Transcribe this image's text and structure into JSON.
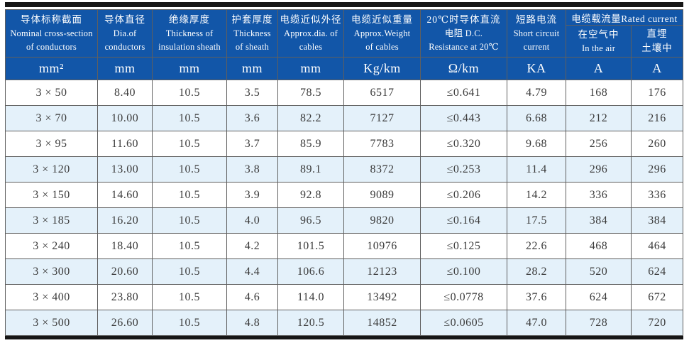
{
  "colors": {
    "header_bg": "#1256a8",
    "header_text": "#ffffff",
    "row_bg": "#ffffff",
    "row_alt_bg": "#e4f1fa",
    "grid_border": "#5f5f5f",
    "frame_bar": "#161616",
    "cell_text": "#3b3b3b"
  },
  "header": {
    "columns": [
      {
        "zh": "导体标称截面",
        "en": [
          "Nominal cross-section",
          "of conductors"
        ],
        "unit": "mm²"
      },
      {
        "zh": "导体直径",
        "en": [
          "Dia.of",
          "conductors"
        ],
        "unit": "mm"
      },
      {
        "zh": "绝缘厚度",
        "en": [
          "Thickness of",
          "insulation sheath"
        ],
        "unit": "mm"
      },
      {
        "zh": "护套厚度",
        "en": [
          "Thickness",
          "of sheath"
        ],
        "unit": "mm"
      },
      {
        "zh": "电缆近似外径",
        "en": [
          "Approx.dia. of",
          "cables"
        ],
        "unit": "mm"
      },
      {
        "zh": "电缆近似重量",
        "en": [
          "Approx.Weight",
          "of cables"
        ],
        "unit": "Kg/km"
      },
      {
        "zh": "20℃时导体直流",
        "en": [
          "电阻 D.C.",
          "Resistance at 20℃"
        ],
        "unit": "Ω/km"
      },
      {
        "zh": "短路电流",
        "en": [
          "Short circuit",
          "current"
        ],
        "unit": "KA"
      }
    ],
    "rated_current": {
      "title": "电缆载流量Rated current",
      "sub": [
        {
          "line1": "在空气中",
          "line2": "In the air",
          "unit": "A"
        },
        {
          "line1": "直埋",
          "line2": "土壤中",
          "unit": "A"
        }
      ]
    }
  },
  "rows": [
    [
      "3 × 50",
      "8.40",
      "10.5",
      "3.5",
      "78.5",
      "6517",
      "≤0.641",
      "4.79",
      "168",
      "176"
    ],
    [
      "3 × 70",
      "10.00",
      "10.5",
      "3.6",
      "82.2",
      "7127",
      "≤0.443",
      "6.68",
      "212",
      "216"
    ],
    [
      "3 × 95",
      "11.60",
      "10.5",
      "3.7",
      "85.9",
      "7783",
      "≤0.320",
      "9.68",
      "256",
      "260"
    ],
    [
      "3 × 120",
      "13.00",
      "10.5",
      "3.8",
      "89.1",
      "8372",
      "≤0.253",
      "11.4",
      "296",
      "296"
    ],
    [
      "3 × 150",
      "14.60",
      "10.5",
      "3.9",
      "92.8",
      "9089",
      "≤0.206",
      "14.2",
      "336",
      "336"
    ],
    [
      "3 × 185",
      "16.20",
      "10.5",
      "4.0",
      "96.5",
      "9820",
      "≤0.164",
      "17.5",
      "384",
      "384"
    ],
    [
      "3 × 240",
      "18.40",
      "10.5",
      "4.2",
      "101.5",
      "10976",
      "≤0.125",
      "22.6",
      "468",
      "464"
    ],
    [
      "3 × 300",
      "20.60",
      "10.5",
      "4.4",
      "106.6",
      "12123",
      "≤0.100",
      "28.2",
      "520",
      "624"
    ],
    [
      "3 × 400",
      "23.80",
      "10.5",
      "4.6",
      "114.0",
      "13492",
      "≤0.0778",
      "37.6",
      "624",
      "672"
    ],
    [
      "3 × 500",
      "26.60",
      "10.5",
      "4.8",
      "120.5",
      "14852",
      "≤0.0605",
      "47.0",
      "728",
      "720"
    ]
  ]
}
